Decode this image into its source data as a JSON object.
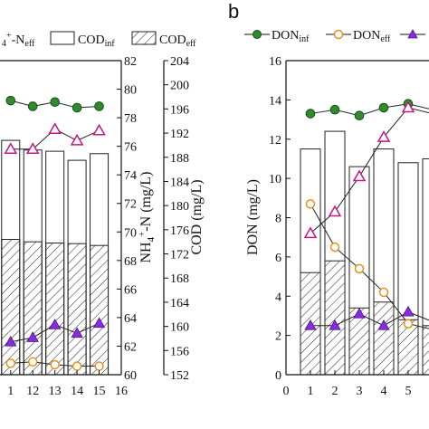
{
  "chart_data": [
    {
      "type": "bar",
      "panel_label": "",
      "x": [
        11,
        12,
        13,
        14,
        15
      ],
      "xticks": [
        "1",
        "12",
        "13",
        "14",
        "15",
        "16"
      ],
      "xlim": [
        10.6,
        16
      ],
      "legend": {
        "nh4_eff": {
          "sub": "4",
          "sup": "+",
          "mid": "-N",
          "tail": "eff"
        },
        "cod_inf": {
          "base": "COD",
          "sub": "inf"
        },
        "cod_eff": {
          "base": "COD",
          "sub": "eff"
        }
      },
      "y_nh4": {
        "label_parts": [
          "NH",
          "4",
          "+",
          "-N (mg/L)"
        ],
        "ylim": [
          60,
          82
        ],
        "ticks": [
          60,
          62,
          64,
          66,
          68,
          70,
          72,
          74,
          76,
          78,
          80,
          82
        ]
      },
      "y_cod": {
        "label": "COD (mg/L)",
        "ylim": [
          152,
          204
        ],
        "ticks": [
          152,
          156,
          160,
          164,
          168,
          172,
          176,
          180,
          184,
          188,
          192,
          196,
          200,
          204
        ]
      },
      "series": [
        {
          "id": "cod_inf",
          "axis": "cod",
          "kind": "bar",
          "values": [
            190.8,
            189.2,
            189.0,
            187.5,
            188.6
          ]
        },
        {
          "id": "cod_eff",
          "axis": "cod",
          "kind": "bar",
          "values": [
            174.4,
            174.0,
            173.8,
            173.7,
            173.4
          ]
        },
        {
          "id": "nh4_inf",
          "axis": "nh4",
          "kind": "line",
          "color": "#2e8b2e",
          "values": [
            79.2,
            78.8,
            79.1,
            78.7,
            78.8
          ]
        },
        {
          "id": "nh4_eff_tri",
          "axis": "nh4",
          "kind": "line",
          "color": "#c71585",
          "values": [
            75.8,
            75.8,
            77.2,
            76.4,
            77.1
          ]
        },
        {
          "id": "nh4_purple",
          "axis": "nh4",
          "kind": "line",
          "color": "#8a2be2",
          "values": [
            62.3,
            62.6,
            63.5,
            62.9,
            63.6
          ]
        },
        {
          "id": "nh4_orange",
          "axis": "nh4",
          "kind": "line",
          "color": "#e8901c",
          "values": [
            60.8,
            60.9,
            60.7,
            60.6,
            60.6
          ]
        }
      ]
    },
    {
      "type": "bar",
      "panel_label": "b",
      "x": [
        1,
        2,
        3,
        4,
        5,
        6
      ],
      "xticks": [
        "0",
        "1",
        "2",
        "3",
        "4",
        "5"
      ],
      "xlim": [
        0,
        6
      ],
      "ylabel": "DON (mg/L)",
      "ylim": [
        0,
        16
      ],
      "yticks": [
        0,
        2,
        4,
        6,
        8,
        10,
        12,
        14,
        16
      ],
      "legend": {
        "don_inf": {
          "base": "DON",
          "sub": "inf"
        },
        "don_eff": {
          "base": "DON",
          "sub": "eff"
        }
      },
      "series": [
        {
          "id": "bar_total",
          "kind": "bar",
          "values": [
            11.5,
            12.4,
            10.6,
            11.5,
            10.8,
            11.0
          ]
        },
        {
          "id": "bar_hatched",
          "kind": "bar",
          "values": [
            5.2,
            5.8,
            3.4,
            3.7,
            2.8,
            2.5
          ]
        },
        {
          "id": "don_inf",
          "kind": "line",
          "color": "#2e8b2e",
          "values": [
            13.3,
            13.5,
            13.2,
            13.6,
            13.8,
            13.5
          ]
        },
        {
          "id": "don_eff",
          "kind": "line",
          "color": "#e8901c",
          "values": [
            8.7,
            6.5,
            5.4,
            4.2,
            2.6,
            2.3
          ]
        },
        {
          "id": "removal_tri",
          "kind": "line",
          "color": "#c71585",
          "values": [
            7.2,
            8.3,
            10.1,
            12.1,
            13.6,
            13.3
          ]
        },
        {
          "id": "don_purple",
          "kind": "line",
          "color": "#8a2be2",
          "values": [
            2.5,
            2.5,
            3.1,
            2.5,
            3.2,
            2.7
          ]
        }
      ]
    }
  ]
}
